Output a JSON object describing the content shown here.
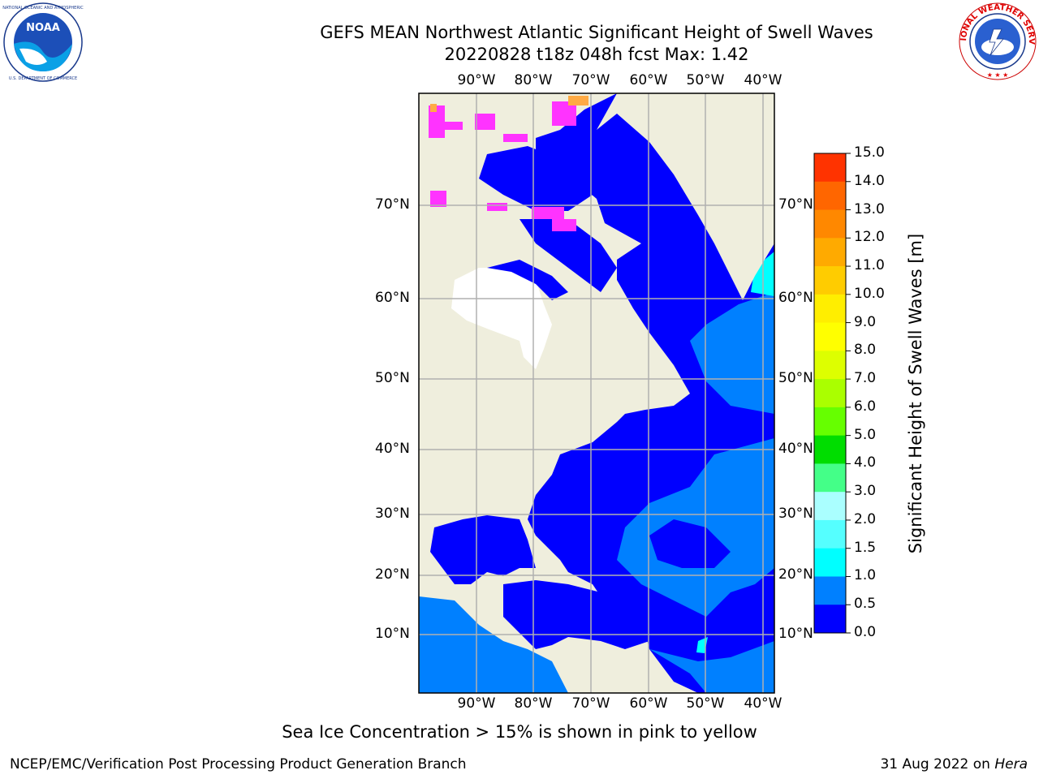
{
  "header": {
    "title_line_1": "GEFS MEAN Northwest Atlantic Significant Height of Swell Waves",
    "title_line_2": "20220828 t18z 048h fcst   Max: 1.42"
  },
  "logos": {
    "left": {
      "name": "noaa-logo",
      "text": "NOAA",
      "ring_text": "NATIONAL OCEANIC AND ATMOSPHERIC ADMINISTRATION · U.S. DEPARTMENT OF COMMERCE"
    },
    "right": {
      "name": "nws-logo",
      "ring_text": "NATIONAL WEATHER SERVICE"
    }
  },
  "map": {
    "lon_labels": [
      "90°W",
      "80°W",
      "70°W",
      "60°W",
      "50°W",
      "40°W"
    ],
    "lat_labels": [
      "70°N",
      "60°N",
      "50°N",
      "40°N",
      "30°N",
      "20°N",
      "10°N"
    ],
    "colors": {
      "land": "#efeedd",
      "ice_free_land_mask": "#ffffff",
      "swell_0_0_5": "#0000ff",
      "swell_0_5_1_0": "#0080ff",
      "swell_1_0_1_5": "#00ffff",
      "ice": "#ff33ff",
      "gridline": "#b0b0b0"
    }
  },
  "colorbar": {
    "label": "Significant Height of Swell Waves [m]",
    "ticks": [
      "15.0",
      "14.0",
      "13.0",
      "12.0",
      "11.0",
      "10.0",
      "9.0",
      "8.0",
      "7.0",
      "6.0",
      "5.0",
      "4.0",
      "3.0",
      "2.0",
      "1.5",
      "1.0",
      "0.5",
      "0.0"
    ],
    "colors_top_to_bottom": [
      "#ff0000",
      "#ff3300",
      "#ff6600",
      "#ff8800",
      "#ffaa00",
      "#ffcc00",
      "#ffee00",
      "#ffff00",
      "#ddff00",
      "#aaff00",
      "#66ff00",
      "#00dd00",
      "#44ff88",
      "#aaffff",
      "#55ffff",
      "#00ffff",
      "#0080ff",
      "#0000ff"
    ]
  },
  "footer": {
    "note": "Sea Ice Concentration > 15% is shown in pink to yellow",
    "credit": "NCEP/EMC/Verification Post Processing Product Generation Branch",
    "date": "31 Aug 2022 on ",
    "host": "Hera"
  }
}
